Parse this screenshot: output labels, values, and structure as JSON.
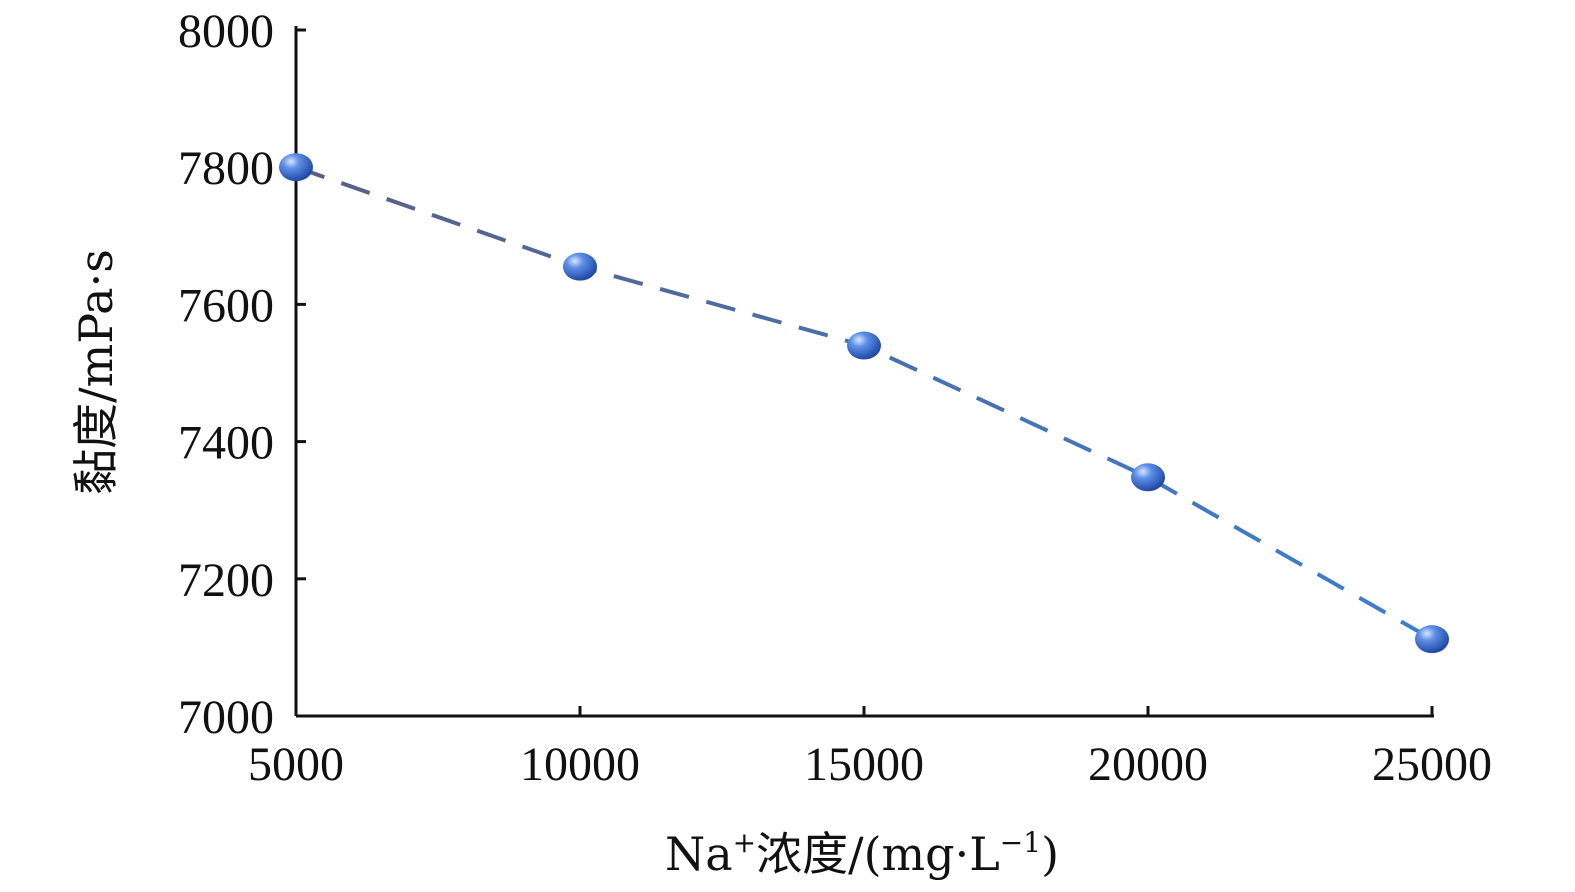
{
  "chart_data": {
    "type": "line",
    "title": "",
    "xlabel_main": "Na",
    "xlabel_sup": "+",
    "xlabel_rest": "浓度/(mg·L",
    "xlabel_sup2": "−1",
    "xlabel_end": ")",
    "ylabel": "黏度/mPa·s",
    "xlim": [
      5000,
      25000
    ],
    "ylim": [
      7000,
      8000
    ],
    "x_ticks": [
      5000,
      10000,
      15000,
      20000,
      25000
    ],
    "y_ticks": [
      7000,
      7200,
      7400,
      7600,
      7800,
      8000
    ],
    "grid": false,
    "series": [
      {
        "x": [
          5000,
          10000,
          15000,
          20000,
          25000
        ],
        "values": [
          7800,
          7655,
          7540,
          7348,
          7112
        ]
      }
    ],
    "colors": {
      "marker": "#3d6fd1",
      "marker_highlight": "#cfe0ff",
      "line_start": "#5a5f86",
      "line_end": "#3a7fd0",
      "axis": "#111111"
    }
  }
}
